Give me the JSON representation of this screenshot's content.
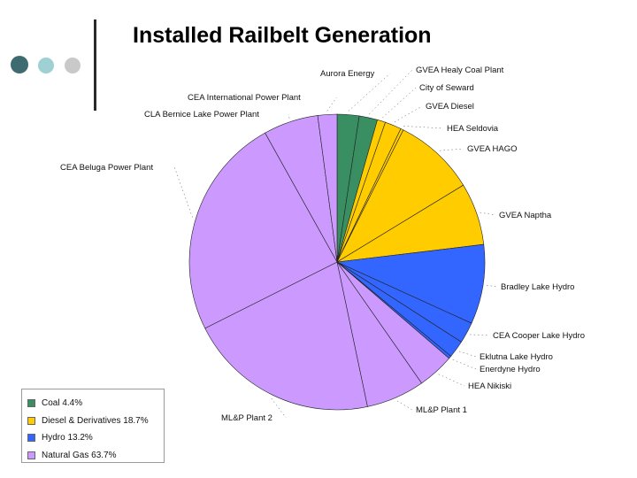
{
  "title": "Installed Railbelt Generation",
  "colors": {
    "Coal": "#3a8f62",
    "Diesel & Derivatives": "#ffcc00",
    "Hydro": "#3366ff",
    "Natural Gas": "#cc99ff"
  },
  "legend": [
    {
      "label": "Coal 4.4%",
      "category": "Coal"
    },
    {
      "label": "Diesel & Derivatives 18.7%",
      "category": "Diesel & Derivatives"
    },
    {
      "label": "Hydro 13.2%",
      "category": "Hydro"
    },
    {
      "label": "Natural Gas 63.7%",
      "category": "Natural Gas"
    }
  ],
  "chart_data": {
    "type": "pie",
    "title": "Installed Railbelt Generation",
    "start_angle_deg": 0,
    "direction": "clockwise",
    "slices": [
      {
        "label": "Aurora Energy",
        "category": "Coal",
        "value": 2.4
      },
      {
        "label": "GVEA Healy Coal Plant",
        "category": "Coal",
        "value": 2.0
      },
      {
        "label": "City of Seward",
        "category": "Diesel & Derivatives",
        "value": 0.9
      },
      {
        "label": "GVEA Diesel",
        "category": "Diesel & Derivatives",
        "value": 1.8
      },
      {
        "label": "HEA Seldovia",
        "category": "Diesel & Derivatives",
        "value": 0.3
      },
      {
        "label": "GVEA HAGO",
        "category": "Diesel & Derivatives",
        "value": 8.9
      },
      {
        "label": "GVEA Naptha",
        "category": "Diesel & Derivatives",
        "value": 6.8
      },
      {
        "label": "Bradley Lake Hydro",
        "category": "Hydro",
        "value": 8.7
      },
      {
        "label": "CEA Cooper Lake Hydro",
        "category": "Hydro",
        "value": 2.3
      },
      {
        "label": "Eklutna Lake Hydro",
        "category": "Hydro",
        "value": 1.9
      },
      {
        "label": "Enerdyne Hydro",
        "category": "Hydro",
        "value": 0.3
      },
      {
        "label": "HEA Nikiski",
        "category": "Natural Gas",
        "value": 4.0
      },
      {
        "label": "ML&P Plant 1",
        "category": "Natural Gas",
        "value": 6.4
      },
      {
        "label": "ML&P Plant 2",
        "category": "Natural Gas",
        "value": 20.9
      },
      {
        "label": "CEA Beluga Power Plant",
        "category": "Natural Gas",
        "value": 24.3
      },
      {
        "label": "CLA Bernice Lake Power Plant",
        "category": "Natural Gas",
        "value": 6.0
      },
      {
        "label": "CEA International Power Plant",
        "category": "Natural Gas",
        "value": 2.1
      }
    ]
  }
}
